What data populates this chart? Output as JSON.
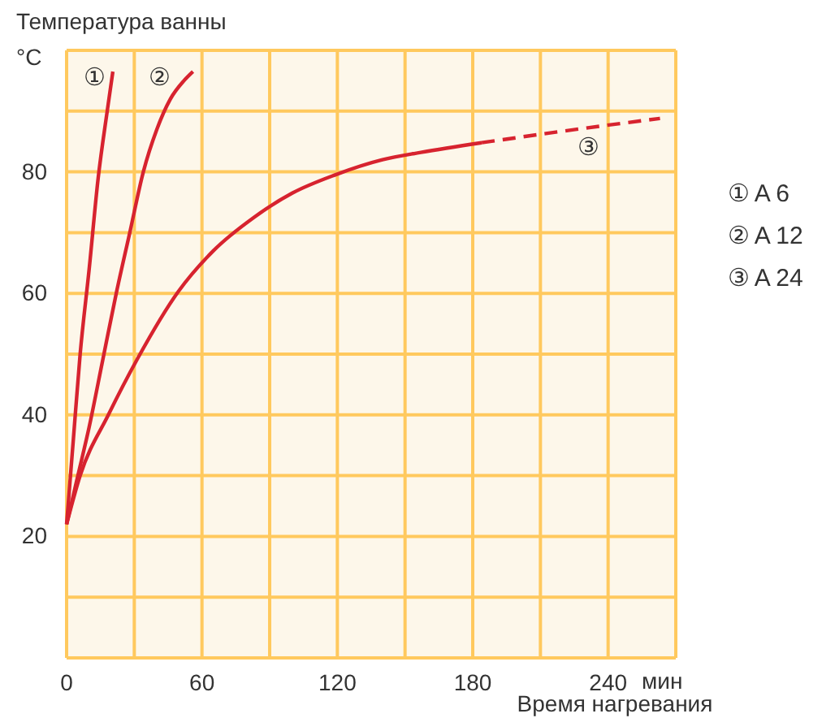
{
  "chart_data": {
    "type": "line",
    "ylabel": "Температура ванны",
    "xlabel": "Время нагревания",
    "xlim": [
      0,
      270
    ],
    "ylim": [
      0,
      100
    ],
    "xticks": [
      0,
      {
        "value": 30,
        "label": null
      },
      60,
      {
        "value": 90,
        "label": null
      },
      120,
      {
        "value": 150,
        "label": null
      },
      180,
      {
        "value": 210,
        "label": null
      },
      240,
      {
        "value": 270,
        "label": null
      }
    ],
    "yticks": [
      {
        "value": 0,
        "label": null
      },
      {
        "value": 10,
        "label": null
      },
      20,
      {
        "value": 30,
        "label": null
      },
      40,
      {
        "value": 50,
        "label": null
      },
      60,
      {
        "value": 70,
        "label": null
      },
      80,
      {
        "value": 90,
        "label": null
      },
      {
        "value": 100,
        "label": null
      }
    ],
    "grid": true,
    "legend": "right",
    "line_style": "solid",
    "series": [
      {
        "name": "① A 6",
        "color": "#d7232f",
        "x": [
          0,
          3,
          6,
          10,
          14,
          18,
          20.5
        ],
        "values": [
          22,
          36,
          50,
          64,
          79,
          90,
          96.5
        ]
      },
      {
        "name": "② A 12",
        "color": "#d7232f",
        "x": [
          0,
          5,
          10,
          16,
          22,
          28,
          34,
          40,
          46,
          52,
          56
        ],
        "values": [
          22,
          30,
          38,
          49,
          60,
          70,
          80,
          87,
          92,
          95,
          96.5
        ]
      },
      {
        "name": "③ A 24",
        "color": "#d7232f",
        "x": [
          0,
          6,
          18.5,
          31.5,
          49.5,
          65,
          83,
          100,
          119,
          140,
          157,
          184
        ],
        "values": [
          22,
          30,
          40,
          49.3,
          60.3,
          67,
          72.5,
          76.5,
          79.5,
          82,
          83.2,
          84.8
        ]
      },
      {
        "color": "#d7232f",
        "line_style": "dashed",
        "x": [
          184,
          220,
          263
        ],
        "values": [
          84.8,
          86.7,
          88.8
        ]
      }
    ],
    "annotations": [
      "°C",
      "мин",
      "①",
      "②",
      "③"
    ]
  }
}
